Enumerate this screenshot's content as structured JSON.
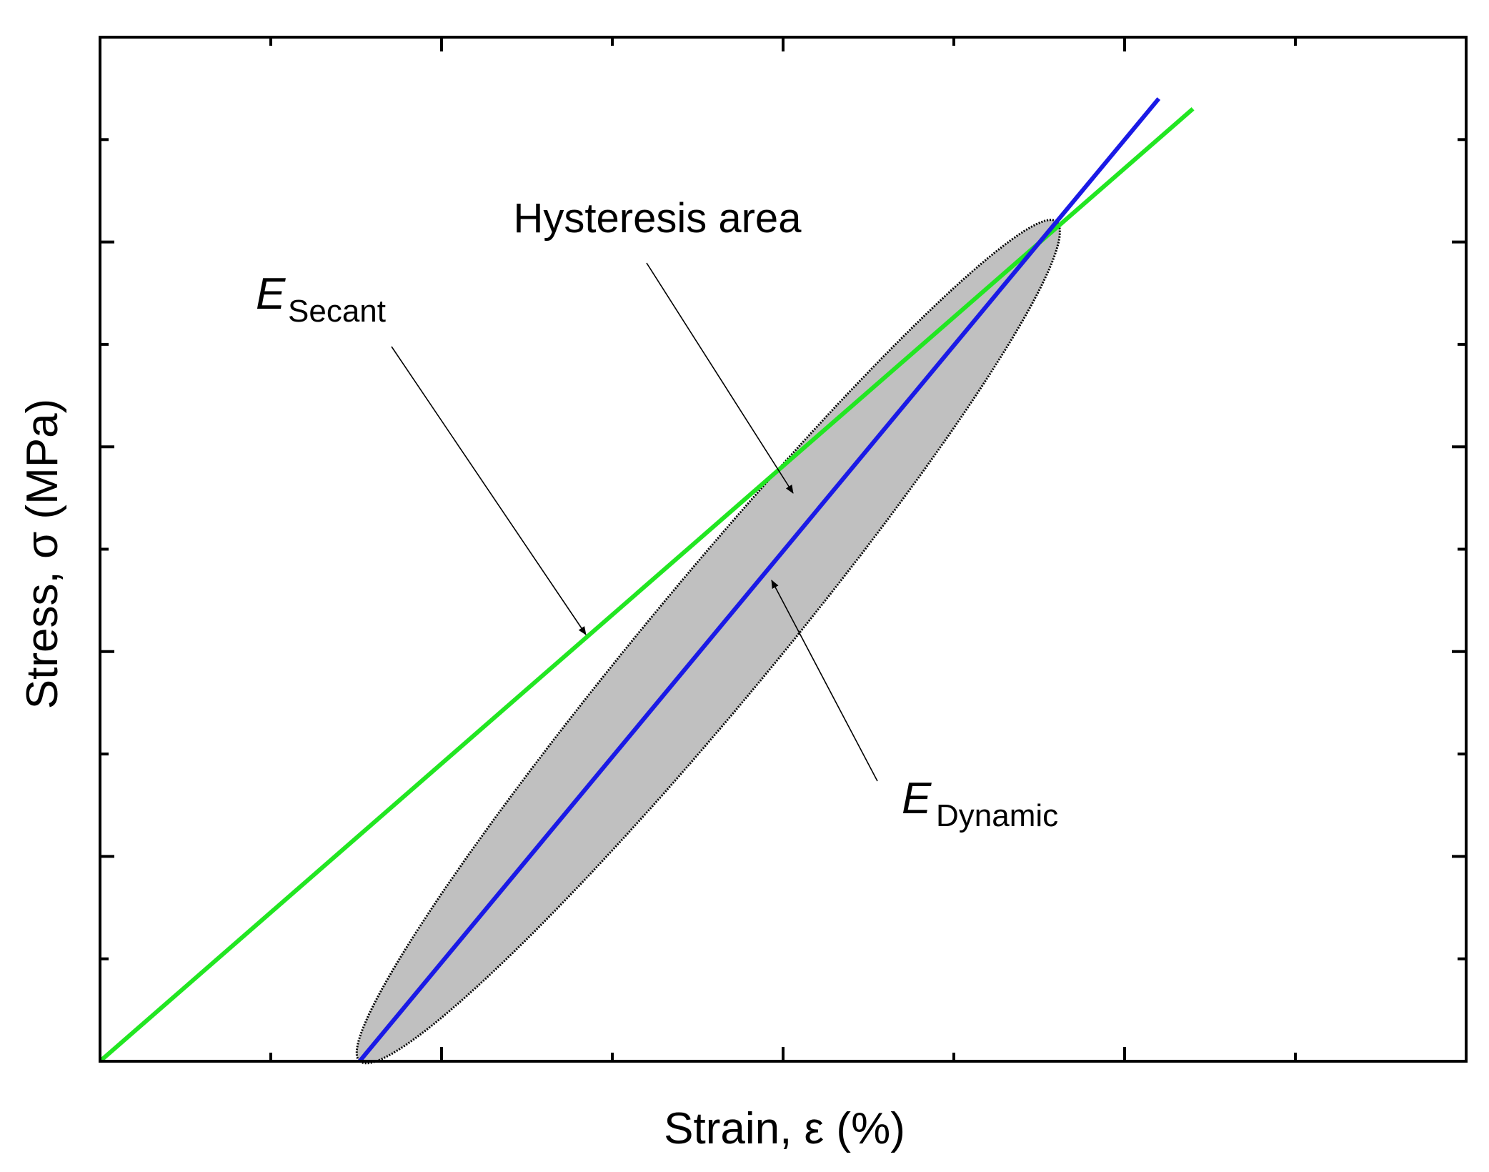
{
  "chart_data": {
    "type": "line",
    "title": "",
    "xlabel": "Strain, ε (%)",
    "ylabel": "Stress, σ (MPa)",
    "xlim": [
      0,
      1
    ],
    "ylim": [
      0,
      1
    ],
    "tick_labels_shown": false,
    "grid": false,
    "legend": "none",
    "series": [
      {
        "name": "E_Secant",
        "color": "#22e622",
        "x": [
          0.0,
          0.8
        ],
        "y": [
          0.0,
          0.93
        ]
      },
      {
        "name": "E_Dynamic",
        "color": "#1a1ae6",
        "x": [
          0.19,
          0.775
        ],
        "y": [
          0.0,
          0.94
        ]
      }
    ],
    "hysteresis_loop": {
      "fill": "#c0c0c0",
      "stroke": "#000000",
      "bottom_point": [
        0.19,
        0.0
      ],
      "top_point": [
        0.7,
        0.82
      ]
    },
    "annotations": {
      "hysteresis": "Hysteresis area",
      "secant_main": "E",
      "secant_sub": "Secant",
      "dynamic_main": "E",
      "dynamic_sub": "Dynamic"
    }
  }
}
